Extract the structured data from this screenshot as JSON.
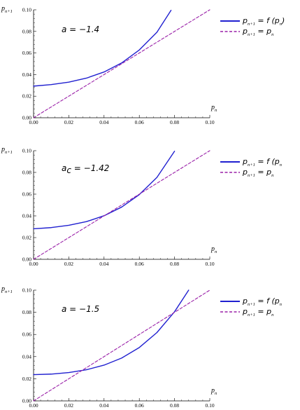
{
  "chart_data": [
    {
      "type": "line",
      "param_label": "a = −1.4",
      "xlabel": "p_n",
      "ylabel": "p_{n+1}",
      "xlim": [
        0,
        0.1
      ],
      "ylim": [
        0,
        0.1
      ],
      "x_ticks": [
        "0.00",
        "0.02",
        "0.04",
        "0.06",
        "0.08",
        "0.10"
      ],
      "y_ticks": [
        "0.00",
        "0.02",
        "0.04",
        "0.06",
        "0.08",
        "0.10"
      ],
      "legend_placement": "right",
      "series": [
        {
          "name": "p_{n+1} = f (p_n)",
          "color": "#2020d0",
          "style": "solid",
          "x": [
            0,
            0.01,
            0.02,
            0.03,
            0.04,
            0.05,
            0.06,
            0.07,
            0.078
          ],
          "y": [
            0.0293,
            0.0307,
            0.033,
            0.0367,
            0.0424,
            0.0508,
            0.0628,
            0.0792,
            0.0995
          ]
        },
        {
          "name": "p_{n+1} = p_n",
          "color": "#9a20a8",
          "style": "dashed",
          "x": [
            0,
            0.1
          ],
          "y": [
            0,
            0.1
          ]
        }
      ]
    },
    {
      "type": "line",
      "param_label": "a_c = −1.42",
      "xlabel": "p_n",
      "ylabel": "p_{n+1}",
      "xlim": [
        0,
        0.1
      ],
      "ylim": [
        0,
        0.1
      ],
      "x_ticks": [
        "0.00",
        "0.02",
        "0.04",
        "0.06",
        "0.08",
        "0.10"
      ],
      "y_ticks": [
        "0.00",
        "0.02",
        "0.04",
        "0.06",
        "0.08",
        "0.10"
      ],
      "legend_placement": "right",
      "series": [
        {
          "name": "p_{n+1} = f (p_n",
          "color": "#2020d0",
          "style": "solid",
          "x": [
            0,
            0.01,
            0.02,
            0.03,
            0.04,
            0.05,
            0.06,
            0.07,
            0.08
          ],
          "y": [
            0.0281,
            0.0292,
            0.0313,
            0.0347,
            0.0401,
            0.0481,
            0.0596,
            0.0754,
            0.0995
          ]
        },
        {
          "name": "p_{n+1} = p_n",
          "color": "#9a20a8",
          "style": "dashed",
          "x": [
            0,
            0.1
          ],
          "y": [
            0,
            0.1
          ]
        }
      ]
    },
    {
      "type": "line",
      "param_label": "a = −1.5",
      "xlabel": "p_n",
      "ylabel": "p_{n+1}",
      "xlim": [
        0,
        0.1
      ],
      "ylim": [
        0,
        0.1
      ],
      "x_ticks": [
        "0.00",
        "0.02",
        "0.04",
        "0.06",
        "0.08",
        "0.10"
      ],
      "y_ticks": [
        "0.00",
        "0.02",
        "0.04",
        "0.06",
        "0.08",
        "0.10"
      ],
      "legend_placement": "right",
      "series": [
        {
          "name": "p_{n+1} = f (p_n",
          "color": "#2020d0",
          "style": "solid",
          "x": [
            0,
            0.01,
            0.02,
            0.03,
            0.04,
            0.05,
            0.06,
            0.07,
            0.08,
            0.088
          ],
          "y": [
            0.0237,
            0.0242,
            0.0256,
            0.0281,
            0.0323,
            0.0387,
            0.0482,
            0.0617,
            0.0805,
            0.1
          ]
        },
        {
          "name": "p_{n+1} = p_n",
          "color": "#9a20a8",
          "style": "dashed",
          "x": [
            0,
            0.1
          ],
          "y": [
            0,
            0.1
          ]
        }
      ]
    }
  ]
}
